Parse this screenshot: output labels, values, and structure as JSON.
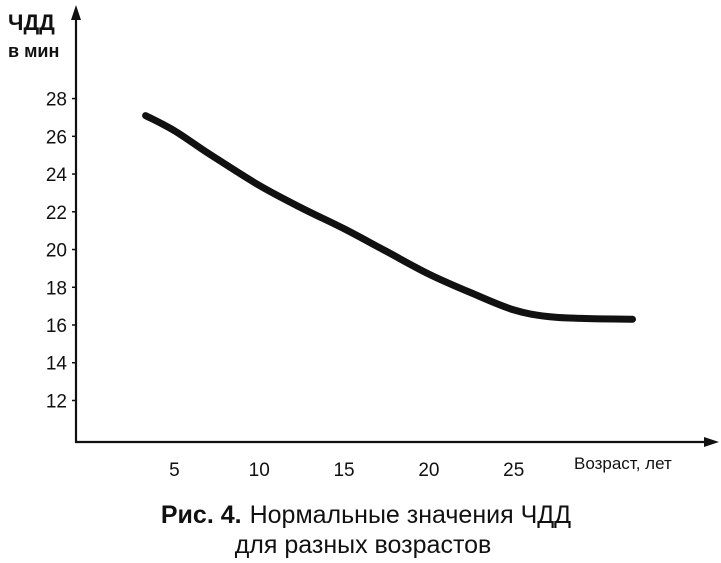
{
  "caption": {
    "prefix": "Рис. 4.",
    "line1": "Нормальные значения ЧДД",
    "line2": "для разных возрастов"
  },
  "colors": {
    "ink": "#111111",
    "background": "#ffffff"
  },
  "chart_data": {
    "type": "line",
    "title": "",
    "ylabel": [
      "ЧДД",
      "в мин"
    ],
    "xlabel": "Возраст, лет",
    "xlim": [
      -0.8,
      37.1
    ],
    "ylim": [
      9.8,
      32.8
    ],
    "xticks": [
      5,
      10,
      15,
      20,
      25
    ],
    "yticks": [
      12,
      14,
      16,
      18,
      20,
      22,
      24,
      26,
      28
    ],
    "grid": false,
    "legend": "none",
    "series": [
      {
        "x": [
          3.3,
          5,
          7,
          10,
          12.5,
          15,
          17.5,
          20,
          22.5,
          25,
          27,
          29,
          32
        ],
        "y": [
          27.1,
          26.3,
          25.1,
          23.4,
          22.2,
          21.1,
          19.9,
          18.7,
          17.7,
          16.8,
          16.45,
          16.35,
          16.3
        ]
      }
    ]
  }
}
